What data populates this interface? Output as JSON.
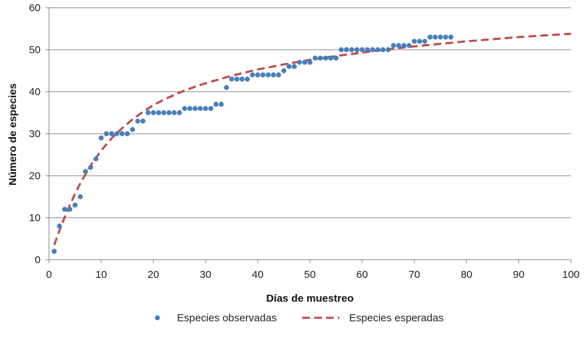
{
  "chart_data": {
    "type": "scatter",
    "title": "",
    "xlabel": "Días de muestreo",
    "ylabel": "Número de especies",
    "xlim": [
      0,
      100
    ],
    "ylim": [
      0,
      60
    ],
    "xticks": [
      0,
      10,
      20,
      30,
      40,
      50,
      60,
      70,
      80,
      90,
      100
    ],
    "yticks": [
      0,
      10,
      20,
      30,
      40,
      50,
      60
    ],
    "grid": "horizontal",
    "legend_position": "bottom",
    "series": [
      {
        "name": "Especies observadas",
        "kind": "scatter",
        "color": "#4a7ebb",
        "x": [
          1,
          2,
          3,
          4,
          5,
          6,
          7,
          8,
          9,
          10,
          11,
          12,
          13,
          14,
          15,
          16,
          17,
          18,
          19,
          20,
          21,
          22,
          23,
          24,
          25,
          26,
          27,
          28,
          29,
          30,
          31,
          32,
          33,
          34,
          35,
          36,
          37,
          38,
          39,
          40,
          41,
          42,
          43,
          44,
          45,
          46,
          47,
          48,
          49,
          50,
          51,
          52,
          53,
          54,
          55,
          56,
          57,
          58,
          59,
          60,
          61,
          62,
          63,
          64,
          65,
          66,
          67,
          68,
          69,
          70,
          71,
          72,
          73,
          74,
          75,
          76,
          77
        ],
        "y": [
          2,
          8,
          12,
          12,
          13,
          15,
          21,
          22,
          24,
          29,
          30,
          30,
          30,
          30,
          30,
          31,
          33,
          33,
          35,
          35,
          35,
          35,
          35,
          35,
          35,
          36,
          36,
          36,
          36,
          36,
          36,
          37,
          37,
          41,
          43,
          43,
          43,
          43,
          44,
          44,
          44,
          44,
          44,
          44,
          45,
          46,
          46,
          47,
          47,
          47,
          48,
          48,
          48,
          48,
          48,
          50,
          50,
          50,
          50,
          50,
          50,
          50,
          50,
          50,
          50,
          51,
          51,
          51,
          51,
          52,
          52,
          52,
          53,
          53,
          53,
          53,
          53
        ]
      },
      {
        "name": "Especies esperadas",
        "kind": "line",
        "style": "dashed",
        "color": "#be4b48",
        "x": [
          1,
          2,
          3,
          4,
          5,
          6,
          8,
          10,
          12,
          14,
          16,
          18,
          20,
          22,
          25,
          28,
          30,
          35,
          40,
          45,
          50,
          55,
          60,
          65,
          70,
          75,
          80,
          85,
          90,
          95,
          100
        ],
        "y": [
          3.5,
          6.9,
          10.1,
          13.0,
          15.7,
          18.2,
          22.5,
          26.0,
          28.9,
          31.3,
          33.4,
          35.2,
          36.8,
          38.1,
          39.8,
          41.2,
          42.0,
          43.8,
          45.3,
          46.5,
          47.6,
          48.5,
          49.3,
          50.1,
          50.8,
          51.4,
          52.0,
          52.5,
          53.0,
          53.4,
          53.8
        ]
      }
    ]
  }
}
